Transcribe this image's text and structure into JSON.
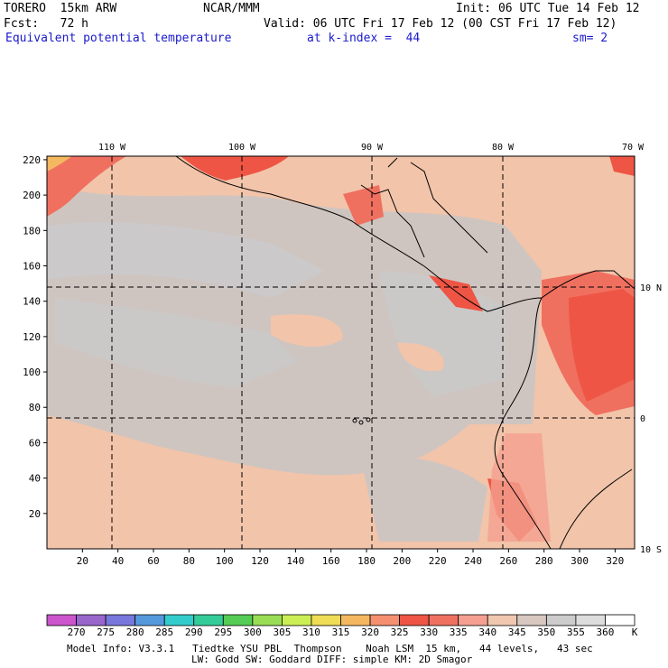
{
  "header": {
    "model": "TORERO  15km ARW",
    "org": "NCAR/MMM",
    "init": "Init: 06 UTC Tue 14 Feb 12",
    "fcst": "Fcst:   72 h",
    "valid": "Valid: 06 UTC Fri 17 Feb 12 (00 CST Fri 17 Feb 12)",
    "field": "Equivalent potential temperature",
    "level": "at k-index =  44",
    "smooth": "sm= 2"
  },
  "map": {
    "lon_labels": [
      "110 W",
      "100 W",
      "90 W",
      "80 W",
      "70 W"
    ],
    "lat_labels": [
      "10 N",
      "0",
      "10 S"
    ],
    "x_ticks": [
      "20",
      "40",
      "60",
      "80",
      "100",
      "120",
      "140",
      "160",
      "180",
      "200",
      "220",
      "240",
      "260",
      "280",
      "300",
      "320"
    ],
    "y_ticks": [
      "20",
      "40",
      "60",
      "80",
      "100",
      "120",
      "140",
      "160",
      "180",
      "200",
      "220"
    ]
  },
  "colorbar": {
    "unit": "K",
    "labels": [
      "270",
      "275",
      "280",
      "285",
      "290",
      "295",
      "300",
      "305",
      "310",
      "315",
      "320",
      "325",
      "330",
      "335",
      "340",
      "345",
      "350",
      "355",
      "360"
    ],
    "colors": [
      "#cc55cc",
      "#9966cc",
      "#7777dd",
      "#5599dd",
      "#33cccc",
      "#33cc99",
      "#55cc55",
      "#99dd55",
      "#ccee55",
      "#eedd55",
      "#f4b860",
      "#f49070",
      "#ee5544",
      "#f07060",
      "#f4a090",
      "#f0c8b0",
      "#d8c8c0",
      "#cccccc",
      "#dddddd",
      "#ffffff"
    ]
  },
  "footer": {
    "line1": "Model Info: V3.3.1   Tiedtke YSU PBL  Thompson    Noah LSM  15 km,   44 levels,   43 sec",
    "line2": "LW: Godd SW: Goddard DIFF: simple KM: 2D Smagor"
  }
}
